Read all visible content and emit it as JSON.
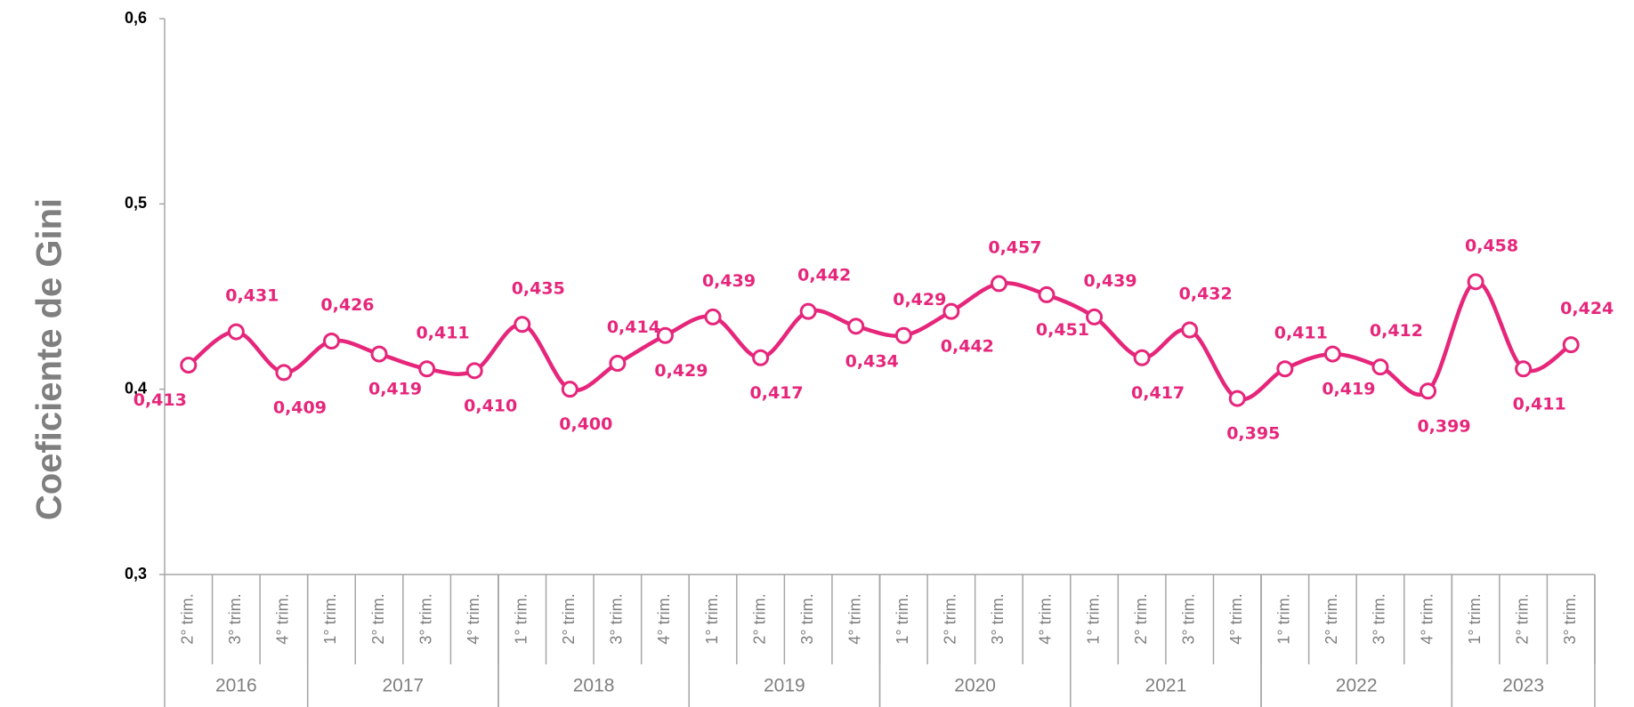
{
  "chart_data": {
    "type": "line",
    "y_axis_label": "Coeficiente de Gini",
    "groups": [
      {
        "name": "2016",
        "categories": [
          "2° trim.",
          "3° trim.",
          "4° trim."
        ]
      },
      {
        "name": "2017",
        "categories": [
          "1° trim.",
          "2° trim.",
          "3° trim.",
          "4° trim."
        ]
      },
      {
        "name": "2018",
        "categories": [
          "1° trim.",
          "2° trim.",
          "3° trim.",
          "4° trim."
        ]
      },
      {
        "name": "2019",
        "categories": [
          "1° trim.",
          "2° trim.",
          "3° trim.",
          "4° trim."
        ]
      },
      {
        "name": "2020",
        "categories": [
          "1° trim.",
          "2° trim.",
          "3° trim.",
          "4° trim."
        ]
      },
      {
        "name": "2021",
        "categories": [
          "1° trim.",
          "2° trim.",
          "3° trim.",
          "4° trim."
        ]
      },
      {
        "name": "2022",
        "categories": [
          "1° trim.",
          "2° trim.",
          "3° trim.",
          "4° trim."
        ]
      },
      {
        "name": "2023",
        "categories": [
          "1° trim.",
          "2° trim.",
          "3° trim."
        ]
      }
    ],
    "series": [
      {
        "name": "Coeficiente de Gini",
        "color": "#e6267b",
        "values": [
          0.413,
          0.431,
          0.409,
          0.426,
          0.419,
          0.411,
          0.41,
          0.435,
          0.4,
          0.414,
          0.429,
          0.439,
          0.417,
          0.442,
          0.434,
          0.429,
          0.442,
          0.457,
          0.451,
          0.439,
          0.417,
          0.432,
          0.395,
          0.411,
          0.419,
          0.412,
          0.399,
          0.458,
          0.411,
          0.424
        ],
        "value_labels": [
          "0,413",
          "0,431",
          "0,409",
          "0,426",
          "0,419",
          "0,411",
          "0,410",
          "0,435",
          "0,400",
          "0,414",
          "0,429",
          "0,439",
          "0,417",
          "0,442",
          "0,434",
          "0,429",
          "0,442",
          "0,457",
          "0,451",
          "0,439",
          "0,417",
          "0,432",
          "0,395",
          "0,411",
          "0,419",
          "0,412",
          "0,399",
          "0,458",
          "0,411",
          "0,424"
        ]
      }
    ],
    "ylim": [
      0.3,
      0.6
    ],
    "yticks": [
      {
        "value": 0.3,
        "label": "0,3"
      },
      {
        "value": 0.4,
        "label": "0,4"
      },
      {
        "value": 0.5,
        "label": "0,5"
      },
      {
        "value": 0.6,
        "label": "0,6"
      }
    ],
    "grid": false
  }
}
